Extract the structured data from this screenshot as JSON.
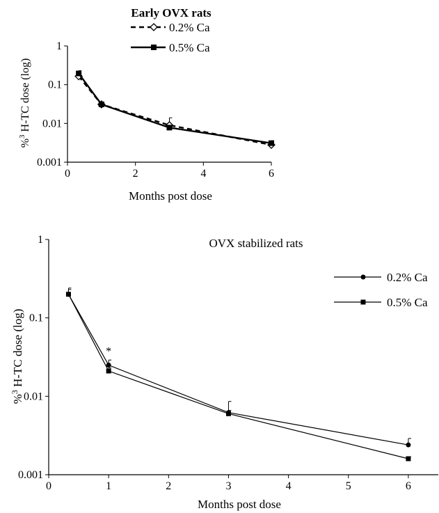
{
  "chart_data": [
    {
      "type": "line",
      "title": "Early OVX rats",
      "xlabel": "Months post dose",
      "ylabel": "%³H-TC dose (log)",
      "ylabel_prefix": "%",
      "ylabel_sup": "3",
      "ylabel_rest": " H-TC dose (log)",
      "yscale": "log",
      "xlim": [
        0,
        6
      ],
      "ylim": [
        0.001,
        1
      ],
      "xticks": [
        0,
        2,
        4,
        6
      ],
      "xtick_labels": [
        "0",
        "2",
        "4",
        "6"
      ],
      "yticks": [
        0.001,
        0.01,
        0.1,
        1
      ],
      "ytick_labels": [
        "0.001",
        "0.01",
        "0.1",
        "1"
      ],
      "legend": "top-right",
      "series": [
        {
          "name": "0.2% Ca",
          "marker": "open-diamond",
          "line": "dashed",
          "x": [
            0.33,
            1,
            3,
            6
          ],
          "y": [
            0.165,
            0.031,
            0.009,
            0.0028
          ],
          "err_up": [
            0.19,
            0.033,
            0.014,
            0.0031
          ]
        },
        {
          "name": "0.5% Ca",
          "marker": "filled-square",
          "line": "solid",
          "x": [
            0.33,
            1,
            3,
            6
          ],
          "y": [
            0.195,
            0.031,
            0.0078,
            0.0031
          ],
          "err_up": [
            0.23,
            0.036,
            0.0085,
            0.0036
          ]
        }
      ]
    },
    {
      "type": "line",
      "title": "OVX stabilized rats",
      "xlabel": "Months post dose",
      "ylabel": "%³H-TC dose (log)",
      "ylabel_prefix": "%",
      "ylabel_sup": "3",
      "ylabel_rest": " H-TC dose (log)",
      "yscale": "log",
      "xlim": [
        0,
        6.5
      ],
      "ylim": [
        0.001,
        1
      ],
      "xticks": [
        0,
        1,
        2,
        3,
        4,
        5,
        6
      ],
      "xtick_labels": [
        "0",
        "1",
        "2",
        "3",
        "4",
        "5",
        "6"
      ],
      "yticks": [
        0.001,
        0.01,
        0.1,
        1
      ],
      "ytick_labels": [
        "0.001",
        "0.01",
        "0.1",
        "1"
      ],
      "legend": "right",
      "annotations": [
        {
          "text": "*",
          "x": 1,
          "y": 0.034
        }
      ],
      "series": [
        {
          "name": "0.2% Ca",
          "marker": "filled-circle",
          "line": "solid",
          "x": [
            0.33,
            1,
            3,
            6
          ],
          "y": [
            0.2,
            0.025,
            0.0062,
            0.0024
          ],
          "err_up": [
            0.24,
            0.029,
            0.0086,
            0.0029
          ]
        },
        {
          "name": "0.5% Ca",
          "marker": "filled-square",
          "line": "solid",
          "x": [
            0.33,
            1,
            3,
            6
          ],
          "y": [
            0.2,
            0.021,
            0.006,
            0.0016
          ],
          "err_up": [
            0.23,
            0.023,
            0.0066,
            0.0017
          ]
        }
      ]
    }
  ]
}
